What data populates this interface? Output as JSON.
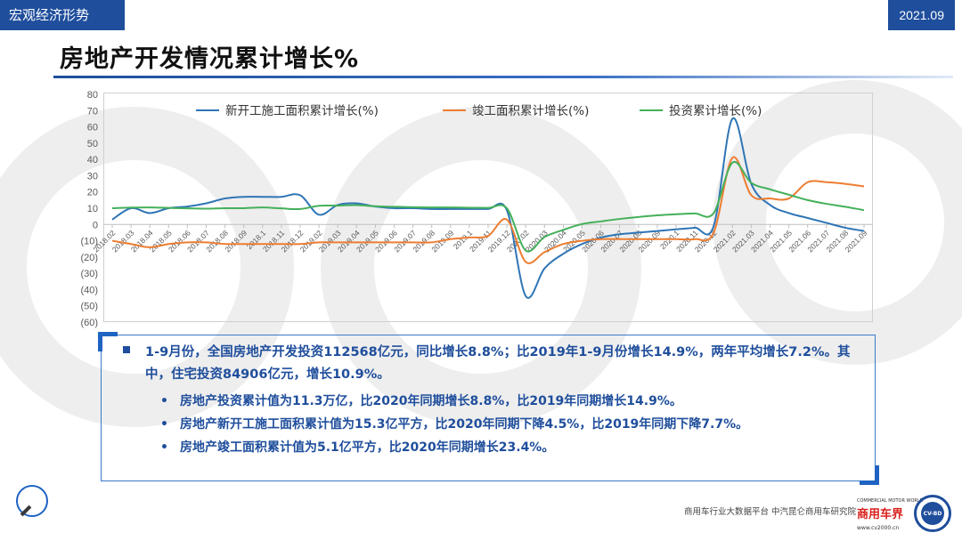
{
  "header": {
    "section_tag": "宏观经济形势",
    "date_tag": "2021.09",
    "title": "房地产开发情况累计增长%"
  },
  "chart_data": {
    "type": "line",
    "title": "",
    "xlabel": "",
    "ylabel": "",
    "ylim": [
      -60,
      80
    ],
    "yticks": [
      "80",
      "70",
      "60",
      "50",
      "40",
      "30",
      "20",
      "10",
      "0",
      "(10)",
      "(20)",
      "(30)",
      "(40)",
      "(50)",
      "(60)"
    ],
    "categories": [
      "2018.02",
      "2018.03",
      "2018.04",
      "2018.05",
      "2018.06",
      "2018.07",
      "2018.08",
      "2018.09",
      "2018.1",
      "2018.11",
      "2018.12",
      "2019.02",
      "2019.03",
      "2019.04",
      "2019.05",
      "2019.06",
      "2019.07",
      "2019.08",
      "2019.09",
      "2019.1",
      "2019.11",
      "2019.12",
      "2020.02",
      "2020.03",
      "2020.04",
      "2020.05",
      "2020.06",
      "2020.07",
      "2020.08",
      "2020.09",
      "2020.1",
      "2020.11",
      "2020.12",
      "2021.02",
      "2021.03",
      "2021.04",
      "2021.05",
      "2021.06",
      "2021.07",
      "2021.08",
      "2021.09"
    ],
    "series": [
      {
        "name": "新开工施工面积累计增长(%)",
        "color": "#2e75b6",
        "values": [
          3,
          10,
          7,
          10,
          11,
          13,
          16,
          17,
          17,
          17,
          18,
          6,
          12,
          13,
          11,
          10,
          10,
          9.5,
          9.5,
          9.5,
          9.5,
          8.7,
          -44,
          -27,
          -18,
          -12,
          -8,
          -6,
          -5,
          -4,
          -3,
          -2,
          -1,
          65,
          25,
          12,
          7,
          4,
          1,
          -2,
          -4
        ]
      },
      {
        "name": "竣工面积累计增长(%)",
        "color": "#ed7d31",
        "values": [
          -10,
          -12,
          -14,
          -12,
          -11,
          -11,
          -12,
          -12,
          -12,
          -12,
          -12,
          -11,
          -11,
          -11,
          -11,
          -11,
          -11,
          -11,
          -9,
          -8,
          -7,
          3,
          -23,
          -17,
          -12,
          -10,
          -9,
          -9,
          -9,
          -9,
          -9,
          -9,
          -5,
          41,
          18,
          16,
          16,
          26,
          26,
          25,
          23.4
        ]
      },
      {
        "name": "投资累计增长(%)",
        "color": "#44b05a",
        "values": [
          10,
          10.4,
          10.5,
          10.2,
          9.9,
          9.7,
          10,
          10,
          10.5,
          9.9,
          9.5,
          11.5,
          11.6,
          11.9,
          11.2,
          10.9,
          10.6,
          10.5,
          10.5,
          10.3,
          10.2,
          9.9,
          -16,
          -7.7,
          -3.3,
          0.3,
          1.9,
          3.4,
          4.6,
          5.6,
          6.3,
          6.8,
          7,
          38,
          25.6,
          21.6,
          18.3,
          15,
          12.7,
          10.9,
          8.8
        ]
      }
    ],
    "grid": false,
    "legend_position": "top"
  },
  "summary": {
    "main": "1-9月份，全国房地产开发投资112568亿元，同比增长8.8%；比2019年1-9月份增长14.9%，两年平均增长7.2%。其中，住宅投资84906亿元，增长10.9%。",
    "bullet_char": "•",
    "sub": [
      "房地产投资累计值为11.3万亿，比2020年同期增长8.8%，比2019年同期增长14.9%。",
      "房地产新开工施工面积累计值为15.3亿平方，比2020年同期下降4.5%，比2019年同期下降7.7%。",
      "房地产竣工面积累计值为5.1亿平方，比2020年同期增长23.4%。"
    ]
  },
  "footer": {
    "source": "商用车行业大数据平台   中汽昆仑商用车研究院",
    "logo_top": "COMMERCIAL MOTOR WORLD",
    "logo_word": "商用车界",
    "logo_url": "www.cv2000.cn",
    "seal_text": "CV-BD"
  }
}
